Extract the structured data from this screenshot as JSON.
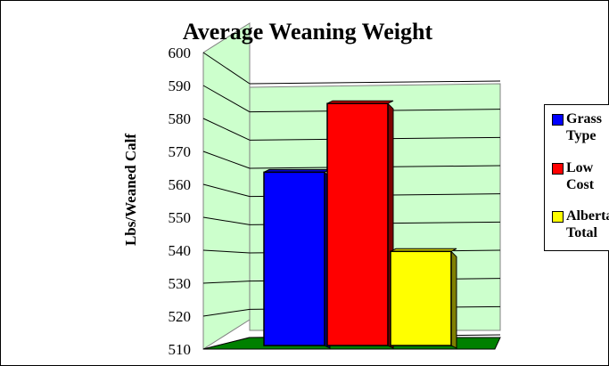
{
  "chart_data": {
    "type": "bar",
    "title": "Average Weaning Weight",
    "ylabel": "Lbs/Weaned Calf",
    "xlabel": "",
    "ylim": [
      510,
      600
    ],
    "yticks": [
      510,
      520,
      530,
      540,
      550,
      560,
      570,
      580,
      590,
      600
    ],
    "ytick_labels": [
      "510",
      "520",
      "530",
      "540",
      "550",
      "560",
      "570",
      "580",
      "590",
      "600"
    ],
    "three_d": true,
    "grid": true,
    "legend_position": "right",
    "series": [
      {
        "name": "Grass Type",
        "value": 568,
        "color": "#0000ff"
      },
      {
        "name": "Low Cost",
        "value": 591,
        "color": "#ff0000"
      },
      {
        "name": "Alberta Total",
        "value": 541.5,
        "color": "#ffff00"
      }
    ],
    "colors": {
      "wall": "#ccffcc",
      "floor": "#008000"
    }
  },
  "legend": {
    "items": [
      {
        "line1": "Grass",
        "line2": "Type"
      },
      {
        "line1": "Low",
        "line2": "Cost"
      },
      {
        "line1": "Alberta",
        "line2": "Total"
      }
    ]
  }
}
